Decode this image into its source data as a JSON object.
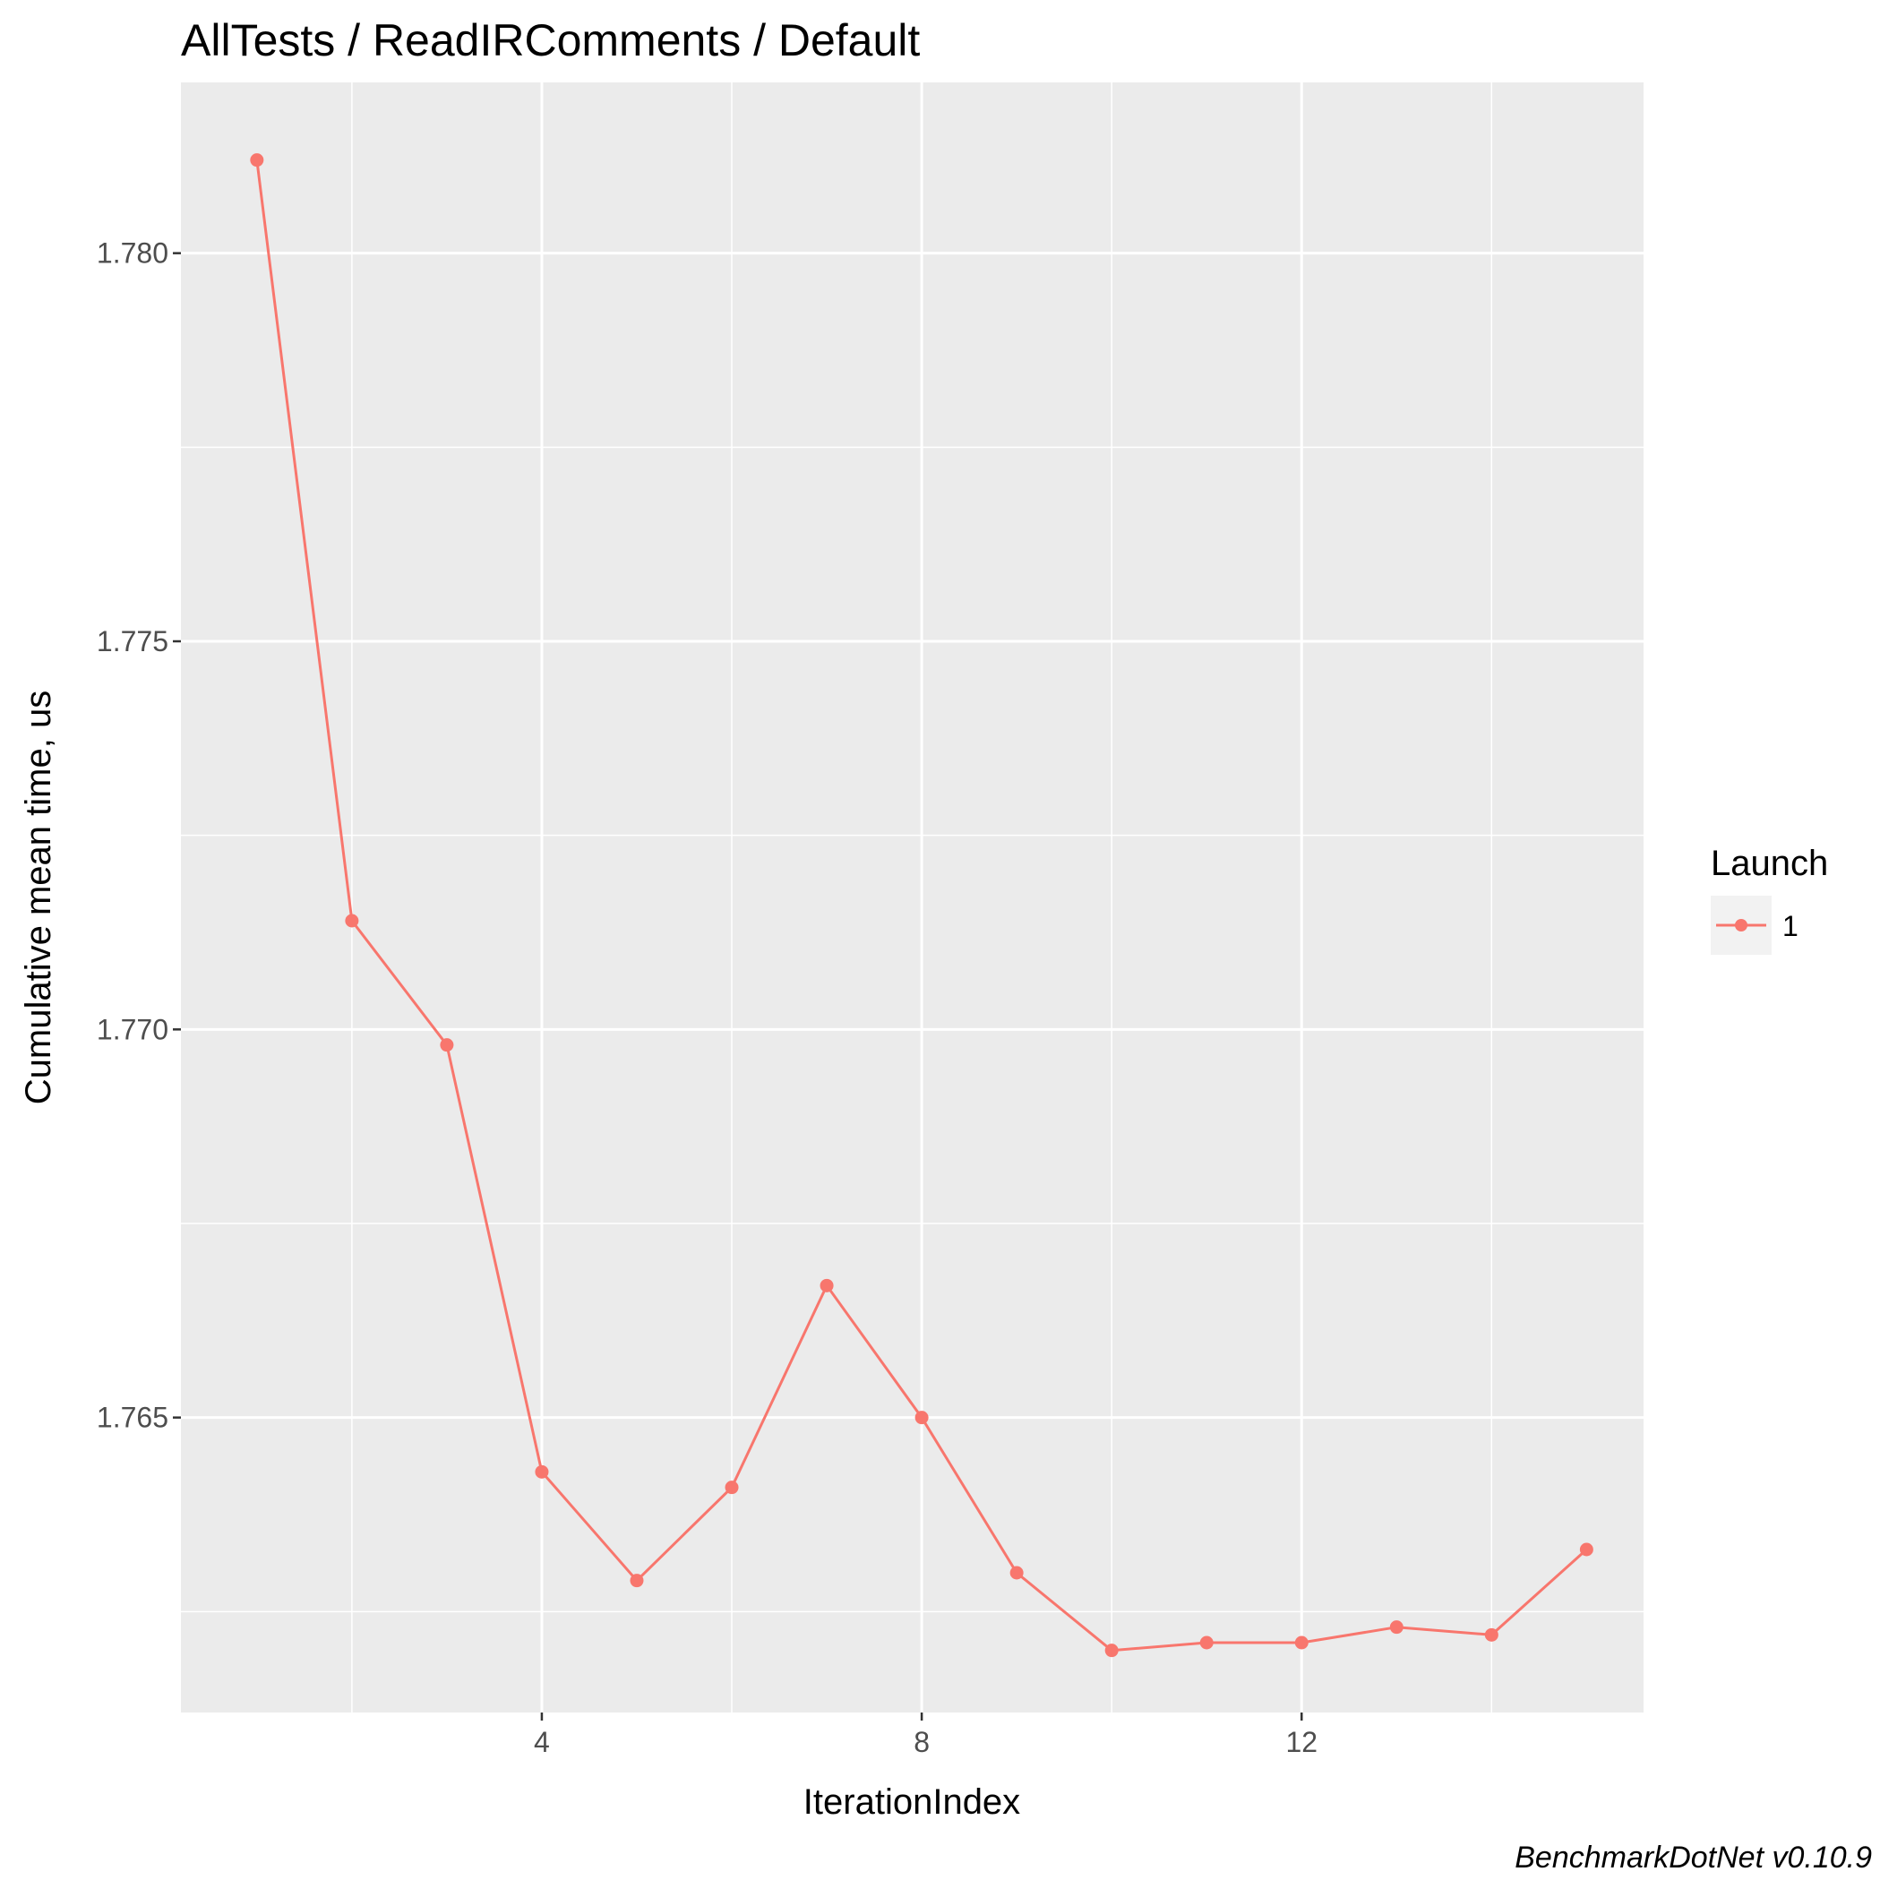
{
  "chart_data": {
    "type": "line",
    "title": "AllTests / ReadIRComments / Default",
    "xlabel": "IterationIndex",
    "ylabel": "Cumulative mean time, us",
    "caption": "BenchmarkDotNet v0.10.9",
    "xlim": [
      0.2,
      15.6
    ],
    "ylim": [
      1.7612,
      1.7822
    ],
    "x_ticks": [
      4,
      8,
      12
    ],
    "x_tick_labels": [
      "4",
      "8",
      "12"
    ],
    "y_ticks": [
      1.765,
      1.77,
      1.775,
      1.78
    ],
    "y_tick_labels": [
      "1.765",
      "1.770",
      "1.775",
      "1.780"
    ],
    "grid": true,
    "legend": {
      "title": "Launch",
      "placement": "right",
      "entries": [
        "1"
      ]
    },
    "colors": {
      "series": "#f8766d",
      "panel": "#ebebeb",
      "grid": "#ffffff"
    },
    "series": [
      {
        "name": "1",
        "x": [
          1,
          2,
          3,
          4,
          5,
          6,
          7,
          8,
          9,
          10,
          11,
          12,
          13,
          14,
          15
        ],
        "values": [
          1.7812,
          1.7714,
          1.7698,
          1.7643,
          1.7629,
          1.7641,
          1.7667,
          1.765,
          1.763,
          1.762,
          1.7621,
          1.7621,
          1.7623,
          1.7622,
          1.7633
        ]
      }
    ]
  }
}
